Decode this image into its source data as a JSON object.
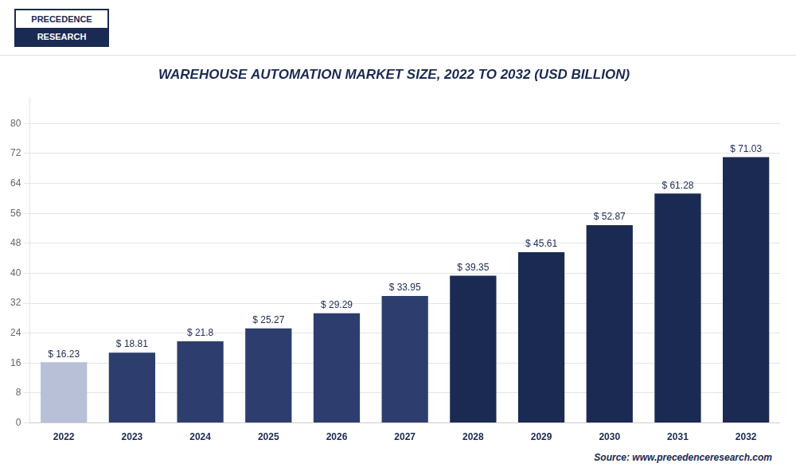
{
  "chart_data": {
    "type": "bar",
    "title": "WAREHOUSE AUTOMATION MARKET SIZE, 2022 TO 2032 (USD BILLION)",
    "categories": [
      "2022",
      "2023",
      "2024",
      "2025",
      "2026",
      "2027",
      "2028",
      "2029",
      "2030",
      "2031",
      "2032"
    ],
    "values": [
      16.23,
      18.81,
      21.8,
      25.27,
      29.29,
      33.95,
      39.35,
      45.61,
      52.87,
      61.28,
      71.03
    ],
    "value_labels": [
      "$ 16.23",
      "$ 18.81",
      "$ 21.8",
      "$ 25.27",
      "$ 29.29",
      "$ 33.95",
      "$ 39.35",
      "$ 45.61",
      "$ 52.87",
      "$ 61.28",
      "$ 71.03"
    ],
    "colors": [
      "#b8c0d8",
      "#2d3e6e",
      "#2d3e6e",
      "#2d3e6e",
      "#2d3e6e",
      "#2d3e6e",
      "#1b2a52",
      "#1b2a52",
      "#1b2a52",
      "#1b2a52",
      "#1b2a52"
    ],
    "ylim": [
      0,
      87
    ],
    "yticks": [
      0,
      8,
      16,
      24,
      32,
      40,
      48,
      56,
      64,
      72,
      80
    ],
    "grid": true,
    "data_labels": true,
    "annotations": [
      "PRECEDENCE",
      "RESEARCH",
      "Source: www.precedenceresearch.com"
    ]
  }
}
